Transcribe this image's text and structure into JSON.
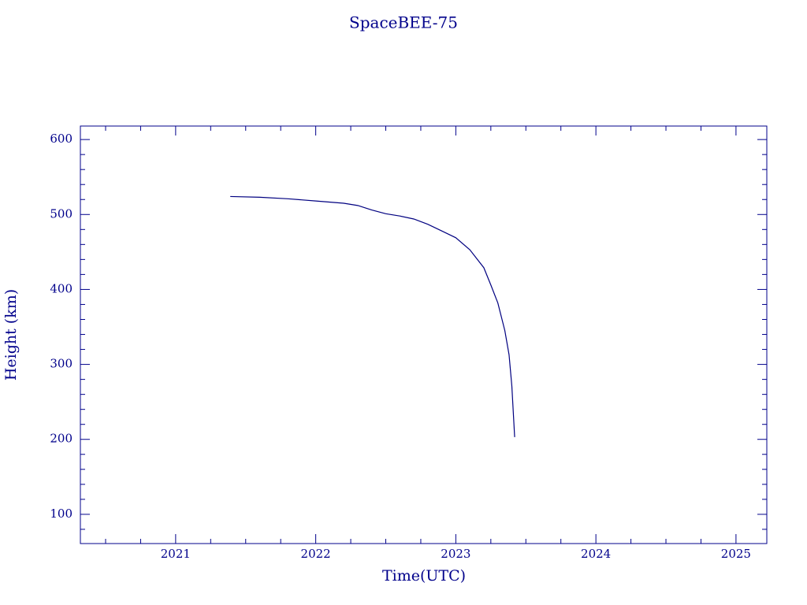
{
  "chart_data": {
    "type": "line",
    "title": "SpaceBEE-75",
    "x_label": "Time(UTC)",
    "y_label": "Height (km)",
    "x": [
      2021.39,
      2021.6,
      2021.8,
      2022.0,
      2022.2,
      2022.3,
      2022.4,
      2022.5,
      2022.6,
      2022.7,
      2022.8,
      2022.9,
      2023.0,
      2023.1,
      2023.2,
      2023.25,
      2023.3,
      2023.35,
      2023.38,
      2023.4,
      2023.42
    ],
    "series": [
      {
        "name": "SpaceBEE-75",
        "color": "#000080",
        "values": [
          524,
          523,
          521,
          518,
          515,
          512,
          506,
          501,
          498,
          494,
          487,
          478,
          469,
          453,
          429,
          406,
          382,
          345,
          313,
          271,
          203
        ]
      }
    ],
    "xlim": [
      2020.32,
      2025.22
    ],
    "ylim": [
      61,
      618
    ],
    "xticks": [
      2021,
      2022,
      2023,
      2024,
      2025
    ],
    "yticks": [
      100,
      200,
      300,
      400,
      500,
      600
    ],
    "x_minor_ticks": [
      2020.5,
      2020.75,
      2021.25,
      2021.5,
      2021.75,
      2022.25,
      2022.5,
      2022.75,
      2023.25,
      2023.5,
      2023.75,
      2024.25,
      2024.5,
      2024.75
    ],
    "y_minor_ticks": [
      80,
      120,
      140,
      160,
      180,
      220,
      240,
      260,
      280,
      320,
      340,
      360,
      380,
      420,
      440,
      460,
      480,
      520,
      540,
      560,
      580
    ],
    "axis_color": "#00008b"
  }
}
